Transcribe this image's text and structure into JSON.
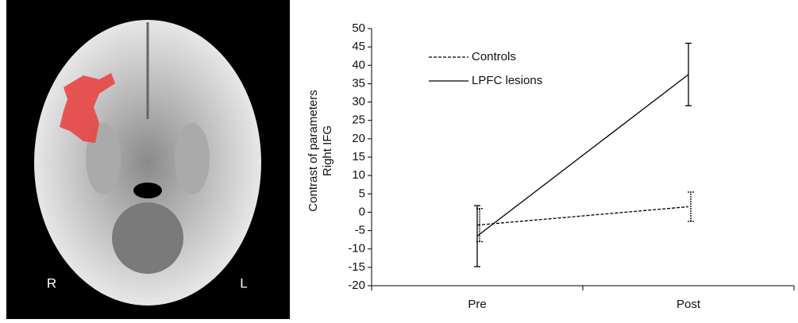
{
  "image": {
    "labels": [
      "R",
      "L"
    ]
  },
  "chart_data": {
    "type": "line",
    "ylabel": [
      "Contrast of parameters",
      "Right IFG"
    ],
    "categories": [
      "Pre",
      "Post"
    ],
    "series": [
      {
        "name": "Controls",
        "color": "#000000",
        "dash": true,
        "values": [
          -3.5,
          1.5
        ],
        "errors": [
          4.5,
          4
        ]
      },
      {
        "name": "LPFC lesions",
        "color": "#000000",
        "dash": false,
        "values": [
          -6.5,
          37.5
        ],
        "errors": [
          8.3,
          8.5
        ]
      }
    ],
    "ylim": [
      -20,
      50
    ],
    "yticks": [
      -20,
      -15,
      -10,
      -5,
      0,
      5,
      10,
      15,
      20,
      25,
      30,
      35,
      40,
      45,
      50
    ]
  }
}
